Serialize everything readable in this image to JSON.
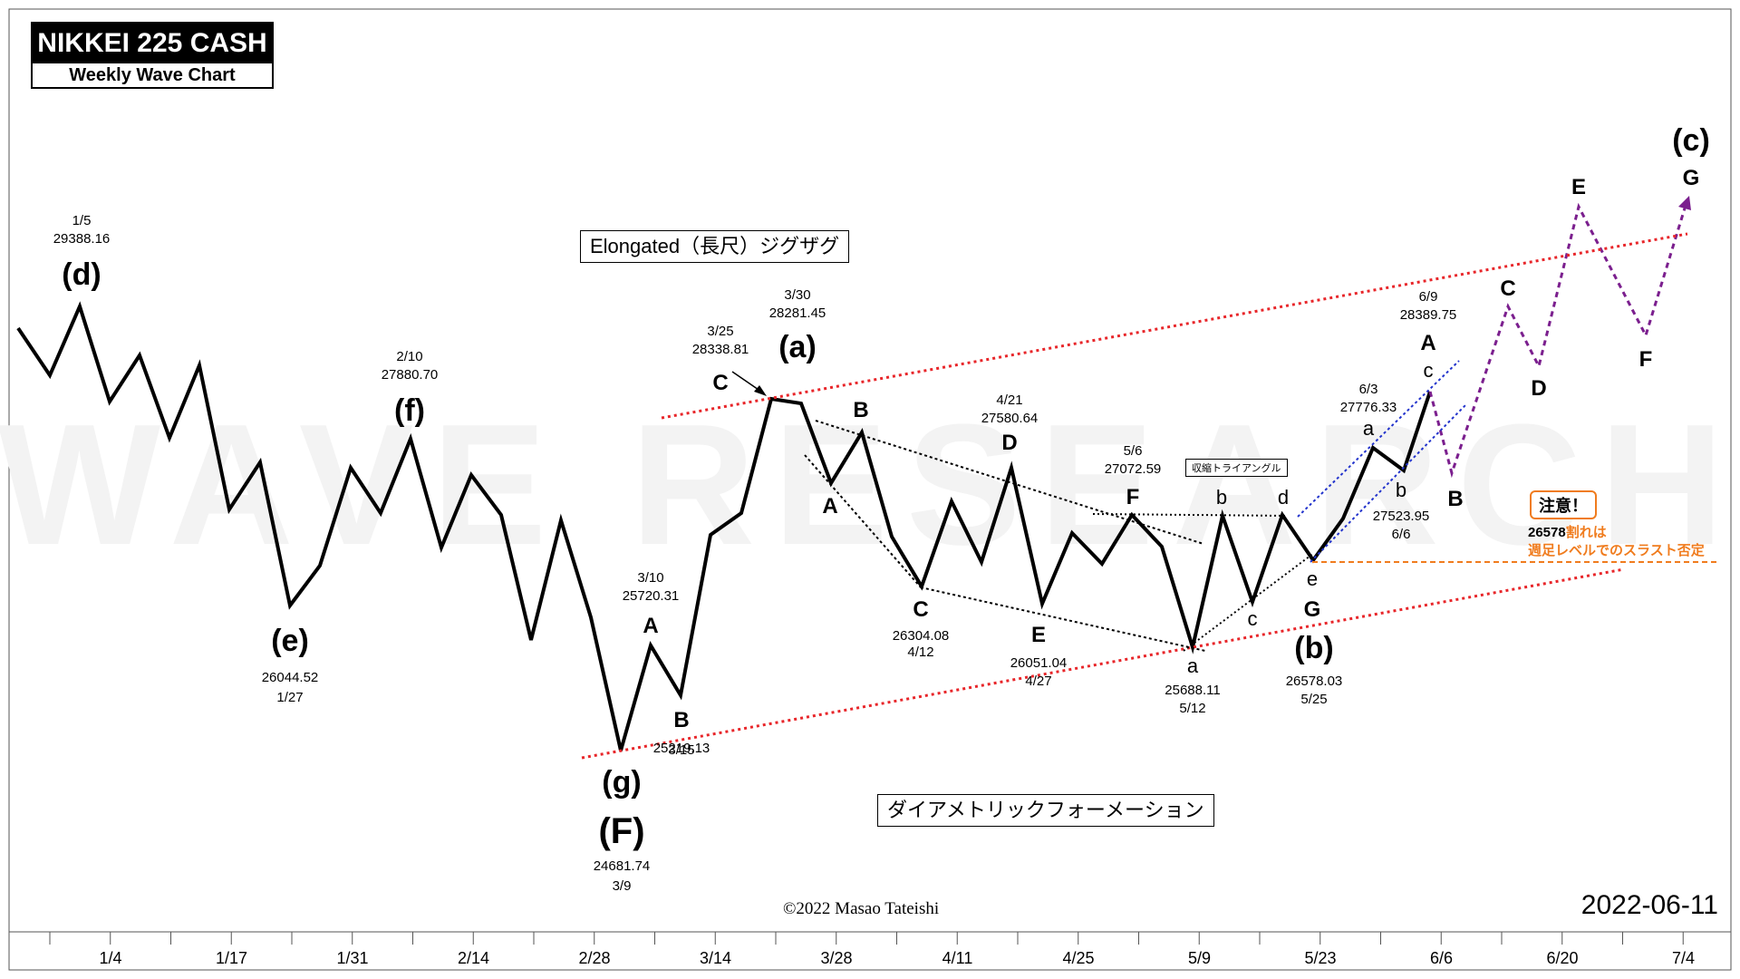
{
  "header": {
    "title": "NIKKEI 225 CASH",
    "subtitle": "Weekly Wave Chart"
  },
  "annotations": {
    "upper_box": "Elongated（長尺）ジグザグ",
    "lower_box": "ダイアメトリックフォーメーション",
    "triangle_box": "収縮トライアングル",
    "caution_title": "注意！",
    "caution_line1_num": "26578",
    "caution_line1_rest": "割れは",
    "caution_line2": "週足レベルでのスラスト否定"
  },
  "footer": {
    "copyright": "©2022 Masao Tateishi",
    "date": "2022-06-11"
  },
  "colors": {
    "price": "#000000",
    "channel": "#e8262a",
    "trendline": "#000000",
    "blue_channel": "#2233cc",
    "projection": "#7b1f8e",
    "caution": "#f07c1e"
  },
  "chart_data": {
    "type": "line",
    "x_ticks": [
      "1/4",
      "1/17",
      "1/31",
      "2/14",
      "2/28",
      "3/14",
      "3/28",
      "4/11",
      "4/25",
      "5/9",
      "5/23",
      "6/6",
      "6/20",
      "7/4"
    ],
    "series": [
      {
        "values": [
          {
            "x": "1/5",
            "y": 29388.16
          },
          {
            "x": "1/27",
            "y": 26044.52
          },
          {
            "x": "2/10",
            "y": 27880.7
          },
          {
            "x": "3/9",
            "y": 24681.74
          },
          {
            "x": "3/10",
            "y": 25720.31
          },
          {
            "x": "3/15",
            "y": 25219.13
          },
          {
            "x": "3/25",
            "y": 28338.81
          },
          {
            "x": "3/30",
            "y": 28281.45
          },
          {
            "x": "4/12",
            "y": 26304.08
          },
          {
            "x": "4/21",
            "y": 27580.64
          },
          {
            "x": "4/27",
            "y": 26051.04
          },
          {
            "x": "5/6",
            "y": 27072.59
          },
          {
            "x": "5/12",
            "y": 25688.11
          },
          {
            "x": "5/25",
            "y": 26578.03
          },
          {
            "x": "6/3",
            "y": 27776.33
          },
          {
            "x": "6/6",
            "y": 27523.95
          },
          {
            "x": "6/9",
            "y": 28389.75
          }
        ]
      }
    ],
    "price_labels": [
      {
        "id": "d",
        "date": "1/5",
        "price": "29388.16",
        "wave": "(d)"
      },
      {
        "id": "e",
        "date": "1/27",
        "price": "26044.52",
        "wave": "(e)"
      },
      {
        "id": "f",
        "date": "2/10",
        "price": "27880.70",
        "wave": "(f)"
      },
      {
        "id": "g",
        "date": "3/9",
        "price": "24681.74",
        "wave": "(g)",
        "wave2": "(F)"
      },
      {
        "id": "a310",
        "date": "3/10",
        "price": "25720.31",
        "wave": "A"
      },
      {
        "id": "b315",
        "date": "3/15",
        "price": "25219.13",
        "wave": "B"
      },
      {
        "id": "c325",
        "date": "3/25",
        "price": "28338.81",
        "wave": "C"
      },
      {
        "id": "a330",
        "date": "3/30",
        "price": "28281.45",
        "wave": "(a)"
      },
      {
        "id": "c412",
        "date": "4/12",
        "price": "26304.08",
        "wave": "C"
      },
      {
        "id": "d421",
        "date": "4/21",
        "price": "27580.64",
        "wave": "D"
      },
      {
        "id": "e427",
        "date": "4/27",
        "price": "26051.04",
        "wave": "E"
      },
      {
        "id": "f56",
        "date": "5/6",
        "price": "27072.59",
        "wave": "F"
      },
      {
        "id": "a512",
        "date": "5/12",
        "price": "25688.11",
        "wave": "a"
      },
      {
        "id": "b525",
        "date": "5/25",
        "price": "26578.03",
        "wave": "(b)"
      },
      {
        "id": "a63",
        "date": "6/3",
        "price": "27776.33",
        "wave": "a"
      },
      {
        "id": "b66",
        "date": "6/6",
        "price": "27523.95",
        "wave": "b"
      },
      {
        "id": "a69",
        "date": "6/9",
        "price": "28389.75",
        "wave": "A"
      }
    ],
    "wave_letters": [
      "A",
      "B",
      "b",
      "c",
      "d",
      "e",
      "G",
      "C",
      "D",
      "E",
      "F",
      "G",
      "(c)",
      "B"
    ]
  }
}
